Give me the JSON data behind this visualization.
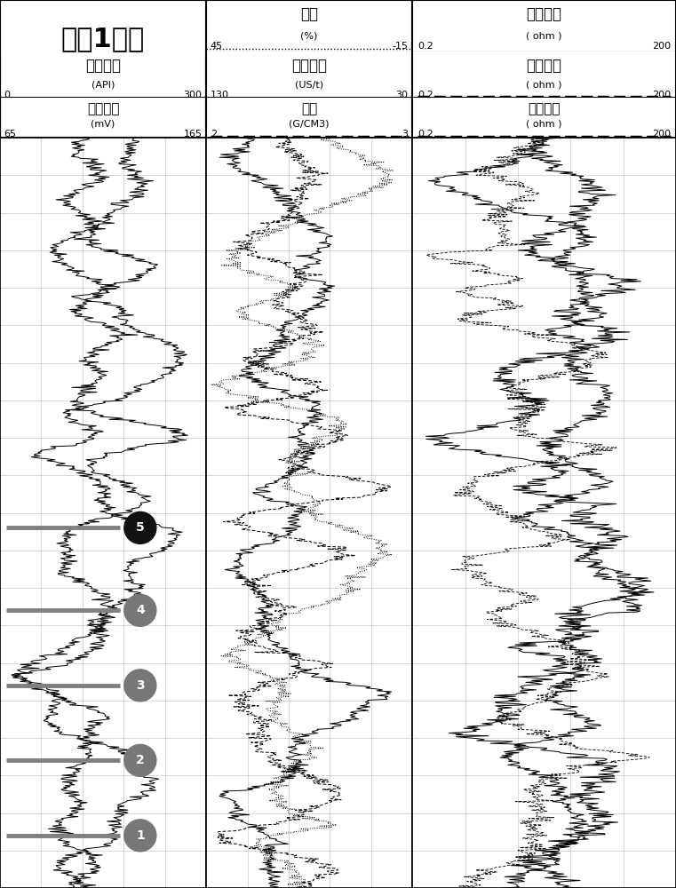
{
  "title": "焦页1号眼",
  "col1_top_label": "自然伽马",
  "col1_top_unit": "(API)",
  "col1_top_min": "0",
  "col1_top_max": "300",
  "col1_mid_label": "自然电位",
  "col1_mid_unit": "(mV)",
  "col1_mid_min": "65",
  "col1_mid_max": "165",
  "col2_top_label": "中子",
  "col2_top_unit": "(%)",
  "col2_top_min": "45",
  "col2_top_max": "-15",
  "col2_mid_label": "声波时差",
  "col2_mid_unit": "(US/t)",
  "col2_mid_min": "130",
  "col2_mid_max": "30",
  "col2_bot_label": "密度",
  "col2_bot_unit": "(G/CM3)",
  "col2_bot_min": "2",
  "col2_bot_max": "3",
  "col3_top_label": "深电阻率",
  "col3_top_unit": "( ohm )",
  "col3_top_min": "0.2",
  "col3_top_max": "200",
  "col3_mid_label": "中电阻率",
  "col3_mid_unit": "( ohm )",
  "col3_mid_min": "0.2",
  "col3_mid_max": "200",
  "col3_bot_label": "浅电阻率",
  "col3_bot_unit": "( ohm )",
  "col3_bot_min": "0.2",
  "col3_bot_max": "200",
  "background_color": "#ffffff",
  "grid_color": "#bbbbbb",
  "circle_labels": [
    "1",
    "2",
    "3",
    "4",
    "5"
  ],
  "circle_colors": [
    "#777777",
    "#777777",
    "#777777",
    "#777777",
    "#111111"
  ],
  "circle_depths": [
    0.93,
    0.83,
    0.73,
    0.63,
    0.52
  ],
  "marker_line_depths": [
    0.93,
    0.83,
    0.73,
    0.63,
    0.52
  ],
  "n_points": 800
}
